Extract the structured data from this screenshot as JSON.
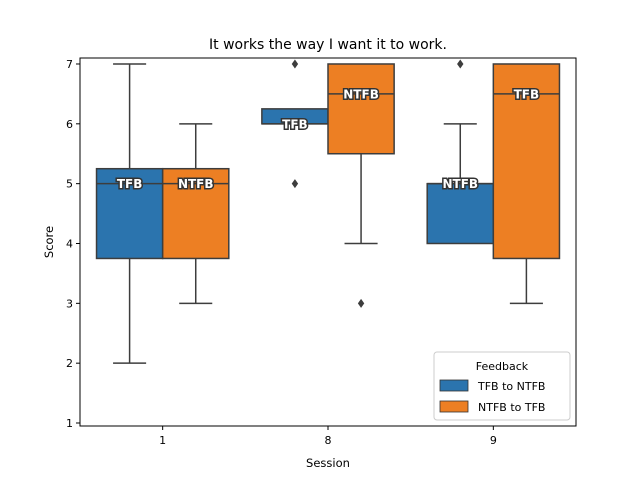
{
  "chart_data": {
    "type": "box",
    "title": "It works the way I want it to work.",
    "xlabel": "Session",
    "ylabel": "Score",
    "categories": [
      "1",
      "8",
      "9"
    ],
    "yticks": [
      1,
      2,
      3,
      4,
      5,
      6,
      7
    ],
    "ylim": [
      0.95,
      7.1
    ],
    "legend": {
      "title": "Feedback",
      "placement": "lower-right",
      "entries": [
        {
          "label": "TFB to NTFB",
          "color": "#2b74ae"
        },
        {
          "label": "NTFB to TFB",
          "color": "#ed7f23"
        }
      ]
    },
    "series": [
      {
        "name": "TFB to NTFB",
        "color": "#2b74ae",
        "boxes": [
          {
            "category": "1",
            "whisker_low": 2,
            "q1": 3.75,
            "median": 5,
            "q3": 5.25,
            "whisker_high": 7,
            "outliers": [],
            "label": "TFB"
          },
          {
            "category": "8",
            "whisker_low": 6,
            "q1": 6,
            "median": 6,
            "q3": 6.25,
            "whisker_high": 6.25,
            "outliers": [
              5,
              7
            ],
            "label": "TFB"
          },
          {
            "category": "9",
            "whisker_low": 4,
            "q1": 4,
            "median": 5,
            "q3": 5,
            "whisker_high": 6,
            "outliers": [
              7
            ],
            "label": "NTFB"
          }
        ]
      },
      {
        "name": "NTFB to TFB",
        "color": "#ed7f23",
        "boxes": [
          {
            "category": "1",
            "whisker_low": 3,
            "q1": 3.75,
            "median": 5,
            "q3": 5.25,
            "whisker_high": 6,
            "outliers": [],
            "label": "NTFB"
          },
          {
            "category": "8",
            "whisker_low": 4,
            "q1": 5.5,
            "median": 6.5,
            "q3": 7,
            "whisker_high": 7,
            "outliers": [
              3
            ],
            "label": "NTFB"
          },
          {
            "category": "9",
            "whisker_low": 3,
            "q1": 3.75,
            "median": 6.5,
            "q3": 7,
            "whisker_high": 7,
            "outliers": [],
            "label": "TFB"
          }
        ]
      }
    ]
  }
}
